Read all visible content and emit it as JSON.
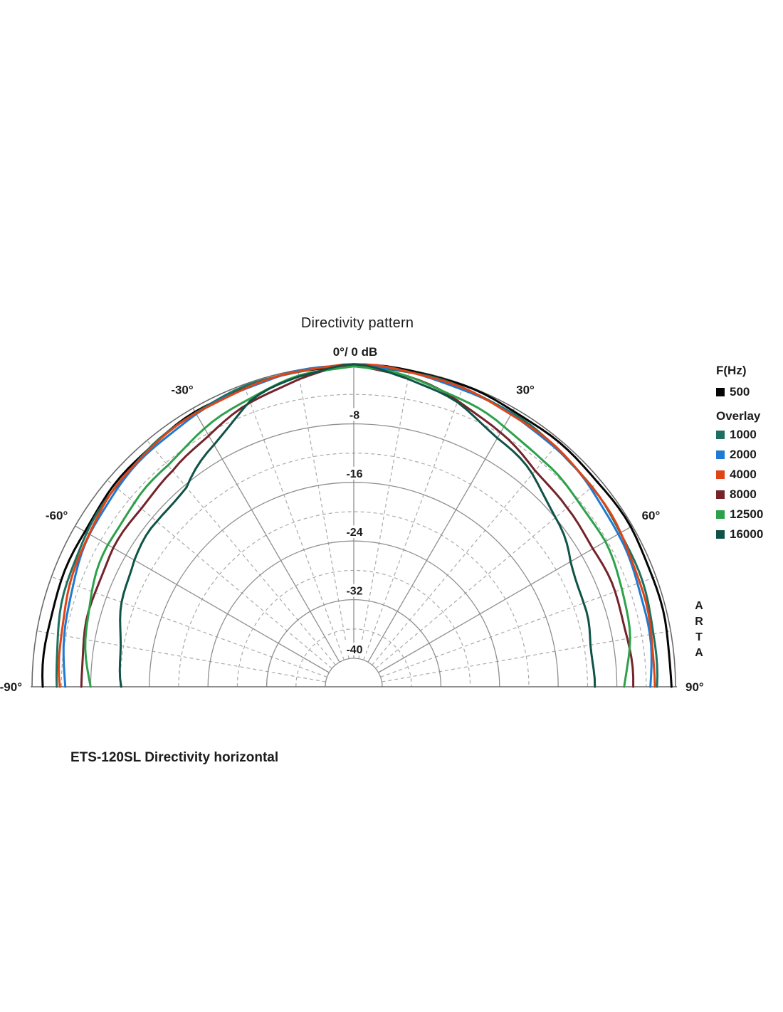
{
  "page": {
    "background": "#ffffff"
  },
  "chart": {
    "title": "Directivity pattern",
    "apex_label": "0°/ 0 dB",
    "caption": "ETS-120SL Directivity horizontal",
    "watermark": "ARTA",
    "angle_labels": [
      {
        "text": "-30°",
        "angle": -30
      },
      {
        "text": "30°",
        "angle": 30
      },
      {
        "text": "-60°",
        "angle": -60
      },
      {
        "text": "60°",
        "angle": 60
      },
      {
        "text": "-90°",
        "angle": -90
      },
      {
        "text": "90°",
        "angle": 90
      }
    ],
    "db_labels": [
      {
        "text": "-8",
        "db": -8
      },
      {
        "text": "-16",
        "db": -16
      },
      {
        "text": "-24",
        "db": -24
      },
      {
        "text": "-32",
        "db": -32
      },
      {
        "text": "-40",
        "db": -40
      }
    ],
    "grid_color_solid": "#8f8f8f",
    "grid_color_dashed": "#aaaaaa",
    "boundary_color": "#6a6a6a",
    "text_color": "#1c1c1c"
  },
  "legend": {
    "freq_header": "F(Hz)",
    "overlay_header": "Overlay"
  },
  "chart_data": {
    "type": "line",
    "polar": "semicircle",
    "title": "Directivity pattern",
    "angle_unit": "deg",
    "angle_range": [
      -90,
      90
    ],
    "db_axis_range": [
      0,
      -44
    ],
    "grid": {
      "solid_circles_db": [
        -8,
        -16,
        -24,
        -32,
        -40
      ],
      "dashed_circles_db": [
        -4,
        -12,
        -20,
        -28,
        -36
      ],
      "outer_circle_db": 0,
      "solid_radials_deg": [
        -60,
        -30,
        0,
        30,
        60
      ],
      "dashed_radials_deg": [
        -80,
        -70,
        -50,
        -40,
        -20,
        -10,
        10,
        20,
        40,
        50,
        70,
        80
      ]
    },
    "x_angles": [
      -90,
      -80,
      -70,
      -60,
      -50,
      -40,
      -30,
      -20,
      -10,
      0,
      10,
      20,
      30,
      40,
      50,
      60,
      70,
      80,
      90
    ],
    "series": [
      {
        "name": "500",
        "color": "#050505",
        "values": [
          -1.5,
          -1.5,
          -1.45,
          -1.4,
          -1.2,
          -1.0,
          -0.7,
          -0.45,
          -0.2,
          0,
          -0.1,
          -0.2,
          -0.3,
          -0.35,
          -0.4,
          -0.4,
          -0.45,
          -0.5,
          -0.5
        ]
      },
      {
        "name": "1000",
        "color": "#1d7060",
        "values": [
          -3.4,
          -2.9,
          -2.35,
          -1.85,
          -1.4,
          -1.0,
          -0.7,
          -0.4,
          -0.17,
          0,
          -0.25,
          -0.5,
          -0.8,
          -1.1,
          -1.45,
          -1.8,
          -2.1,
          -2.35,
          -2.55
        ]
      },
      {
        "name": "2000",
        "color": "#1e7ad2",
        "values": [
          -4.4,
          -3.8,
          -3.1,
          -2.4,
          -1.8,
          -1.3,
          -0.9,
          -0.6,
          -0.25,
          0,
          -0.3,
          -0.6,
          -1.0,
          -1.3,
          -1.7,
          -2.2,
          -2.6,
          -3.0,
          -3.4
        ]
      },
      {
        "name": "4000",
        "color": "#df4416",
        "values": [
          -3.9,
          -3.3,
          -2.7,
          -2.1,
          -1.6,
          -1.1,
          -0.8,
          -0.5,
          -0.2,
          0.1,
          -0.25,
          -0.5,
          -0.85,
          -1.15,
          -1.5,
          -1.9,
          -2.3,
          -2.6,
          -2.9
        ]
      },
      {
        "name": "8000",
        "color": "#74232a",
        "values": [
          -6.8,
          -6.6,
          -6.3,
          -6.0,
          -5.9,
          -5.6,
          -4.3,
          -2.7,
          -1.1,
          0,
          -1.0,
          -2.4,
          -3.9,
          -5.2,
          -6.0,
          -6.2,
          -6.1,
          -5.9,
          -5.7
        ]
      },
      {
        "name": "12500",
        "color": "#2da14a",
        "values": [
          -7.8,
          -6.8,
          -5.9,
          -5.2,
          -4.8,
          -4.3,
          -3.3,
          -2.1,
          -0.9,
          0,
          -0.9,
          -2.0,
          -3.0,
          -3.7,
          -4.0,
          -4.3,
          -4.9,
          -5.8,
          -6.9
        ]
      },
      {
        "name": "16000",
        "color": "#0f5347",
        "values": [
          -12.3,
          -11.3,
          -10.3,
          -9.3,
          -9.0,
          -8.3,
          -5.6,
          -2.5,
          -0.9,
          0,
          -1.0,
          -2.6,
          -4.6,
          -6.2,
          -8.0,
          -9.6,
          -10.5,
          -11.0,
          -11.3
        ]
      }
    ]
  }
}
